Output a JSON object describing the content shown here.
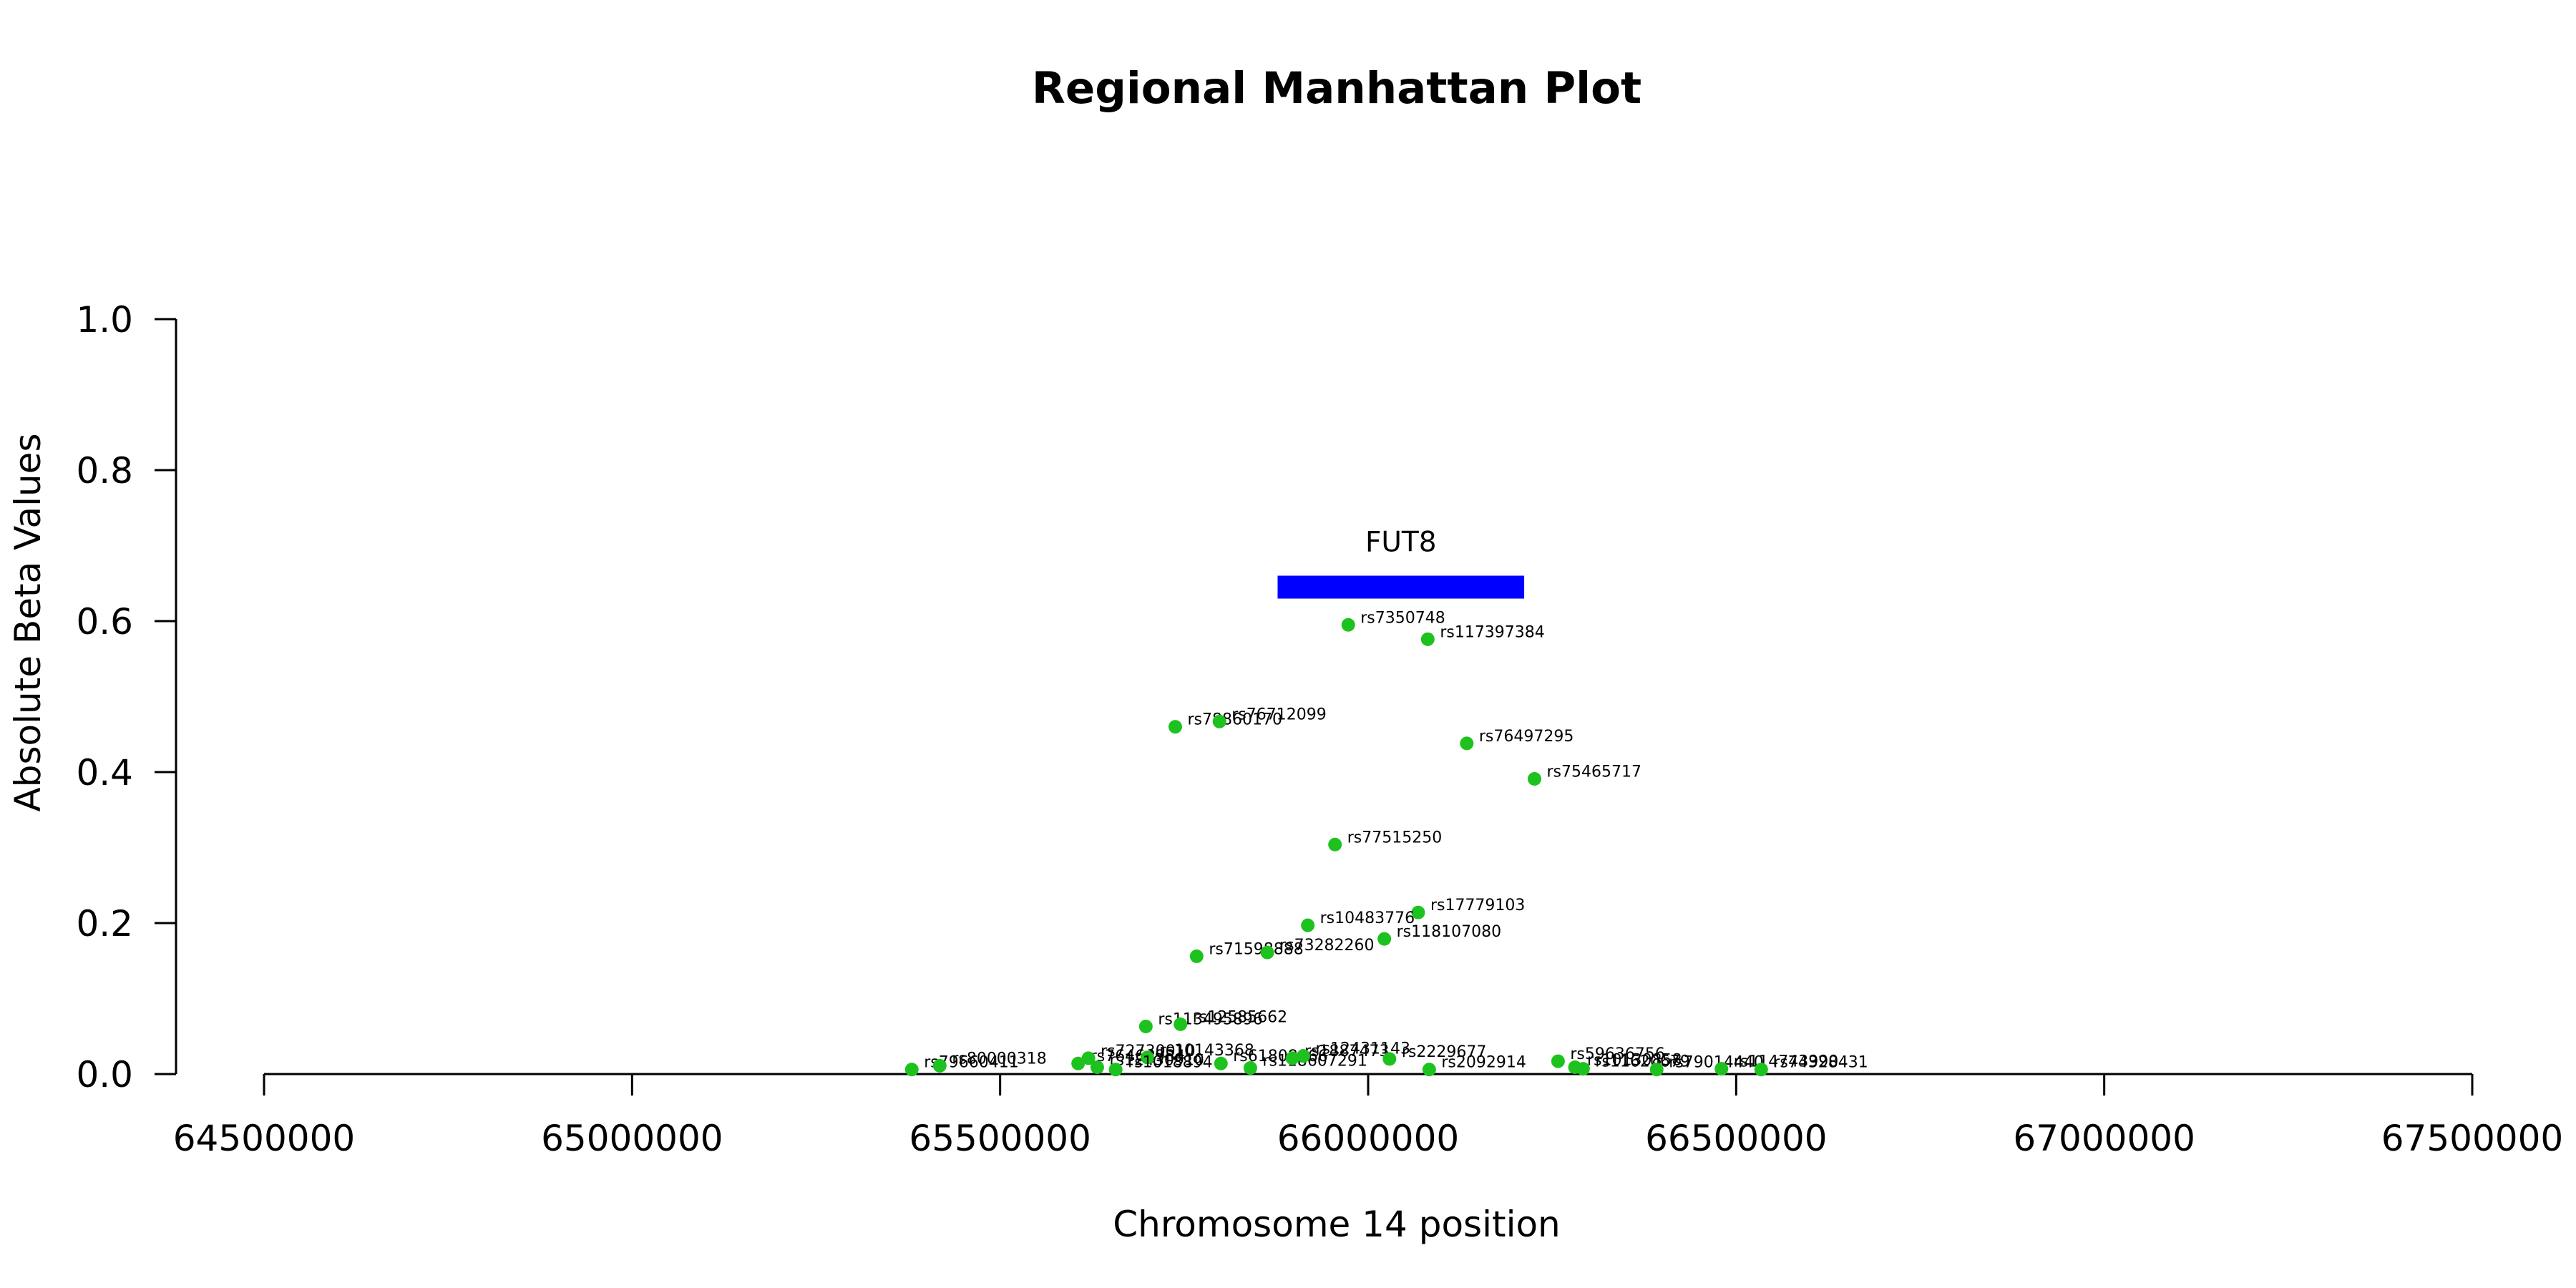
{
  "chart_data": {
    "type": "scatter",
    "title": "Regional Manhattan Plot",
    "xlabel": "Chromosome 14 position",
    "ylabel": "Absolute Beta Values",
    "xlim": [
      64500000,
      67500000
    ],
    "ylim": [
      0,
      1
    ],
    "x_ticks": [
      64500000,
      65000000,
      65500000,
      66000000,
      66500000,
      67000000,
      67500000
    ],
    "x_tick_labels": [
      "64500000",
      "65000000",
      "65500000",
      "66000000",
      "66500000",
      "67000000",
      "67500000"
    ],
    "y_ticks": [
      0,
      0.2,
      0.4,
      0.6,
      0.8,
      1.0
    ],
    "y_tick_labels": [
      "0.0",
      "0.2",
      "0.4",
      "0.6",
      "0.8",
      "1.0"
    ],
    "point_color": "#1ec21e",
    "gene": {
      "name": "FUT8",
      "start": 65877000,
      "end": 66212000,
      "y": 0.645,
      "color": "#0000ff"
    },
    "points": [
      {
        "label": "rs7350748",
        "x": 65973000,
        "y": 0.595
      },
      {
        "label": "rs117397384",
        "x": 66081000,
        "y": 0.576
      },
      {
        "label": "rs78860170",
        "x": 65738000,
        "y": 0.46
      },
      {
        "label": "rs76712099",
        "x": 65798000,
        "y": 0.467
      },
      {
        "label": "rs76497295",
        "x": 66134000,
        "y": 0.438
      },
      {
        "label": "rs75465717",
        "x": 66226000,
        "y": 0.391
      },
      {
        "label": "rs77515250",
        "x": 65955000,
        "y": 0.304
      },
      {
        "label": "rs17779103",
        "x": 66068000,
        "y": 0.214
      },
      {
        "label": "rs10483776",
        "x": 65918000,
        "y": 0.197
      },
      {
        "label": "rs118107080",
        "x": 66022000,
        "y": 0.179
      },
      {
        "label": "rs71598888",
        "x": 65767000,
        "y": 0.156
      },
      {
        "label": "rs73282260",
        "x": 65863000,
        "y": 0.161
      },
      {
        "label": "rs113495896",
        "x": 65698000,
        "y": 0.063
      },
      {
        "label": "rs12585662",
        "x": 65745000,
        "y": 0.066
      },
      {
        "label": "rs79660411",
        "x": 65380000,
        "y": 0.006
      },
      {
        "label": "rs80000318",
        "x": 65418000,
        "y": 0.011
      },
      {
        "label": "rs76464984",
        "x": 65606000,
        "y": 0.014
      },
      {
        "label": "rs72730010",
        "x": 65620000,
        "y": 0.021
      },
      {
        "label": "rs12430910",
        "x": 65632000,
        "y": 0.009
      },
      {
        "label": "rs10143368",
        "x": 65700000,
        "y": 0.022
      },
      {
        "label": "rs1018894",
        "x": 65657000,
        "y": 0.006
      },
      {
        "label": "rs61808866",
        "x": 65800000,
        "y": 0.014
      },
      {
        "label": "rs118607291",
        "x": 65840000,
        "y": 0.008
      },
      {
        "label": "rs1887473",
        "x": 65897000,
        "y": 0.021
      },
      {
        "label": "rs12431143",
        "x": 65912000,
        "y": 0.024
      },
      {
        "label": "rs2229677",
        "x": 66029000,
        "y": 0.02
      },
      {
        "label": "rs2092914",
        "x": 66083000,
        "y": 0.006
      },
      {
        "label": "rs59636756",
        "x": 66258000,
        "y": 0.017
      },
      {
        "label": "rs10130858",
        "x": 66281000,
        "y": 0.009
      },
      {
        "label": "rs11620679",
        "x": 66292000,
        "y": 0.007
      },
      {
        "label": "rs79014440",
        "x": 66392000,
        "y": 0.006
      },
      {
        "label": "rs114743990",
        "x": 66480000,
        "y": 0.007
      },
      {
        "label": "rs74328431",
        "x": 66534000,
        "y": 0.006
      }
    ]
  }
}
